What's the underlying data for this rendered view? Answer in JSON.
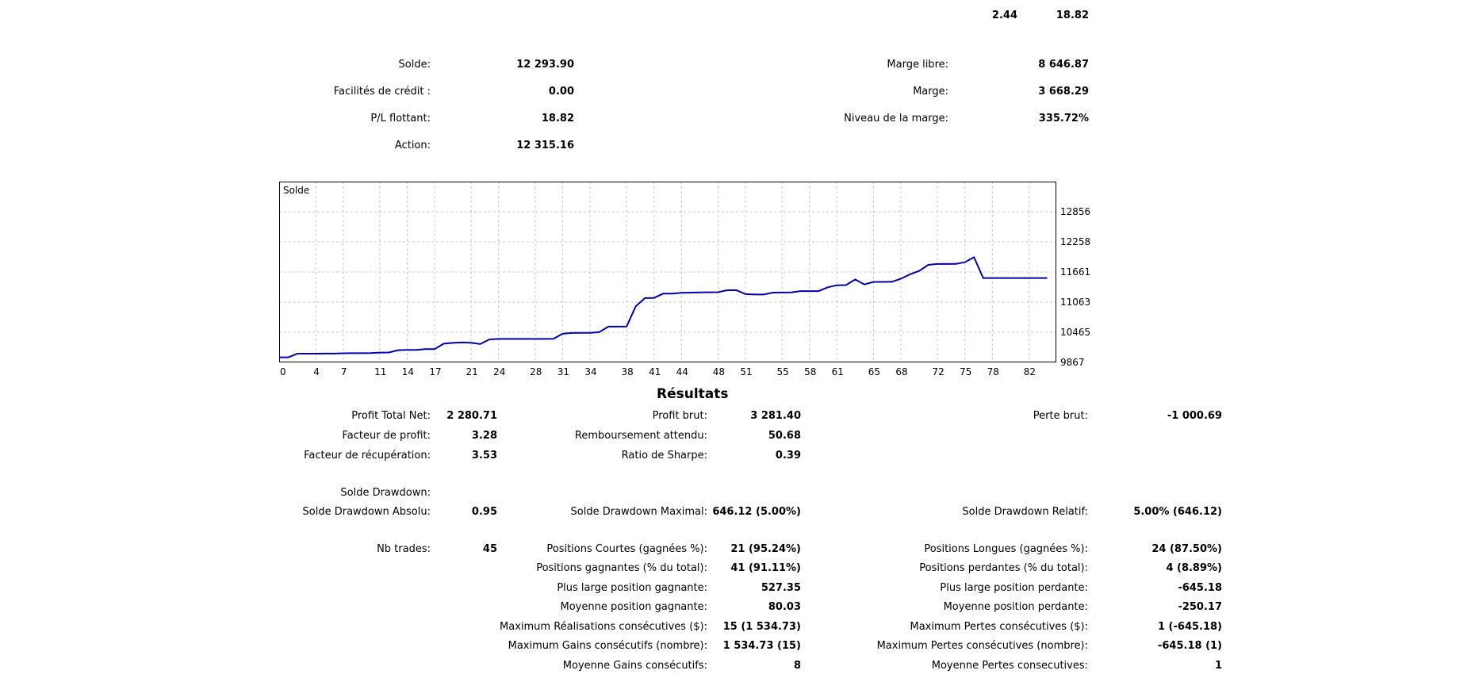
{
  "top_values": {
    "left": "2.44",
    "right": "18.82"
  },
  "account": {
    "solde_label": "Solde:",
    "solde": "12 293.90",
    "credit_label": "Facilités de crédit :",
    "credit": "0.00",
    "pl_label": "P/L flottant:",
    "pl": "18.82",
    "action_label": "Action:",
    "action": "12 315.16",
    "marge_libre_label": "Marge libre:",
    "marge_libre": "8 646.87",
    "marge_label": "Marge:",
    "marge": "3 668.29",
    "niveau_label": "Niveau de la marge:",
    "niveau": "335.72%"
  },
  "chart_data": {
    "type": "line",
    "title": "Solde",
    "x_ticks": [
      "0",
      "4",
      "7",
      "11",
      "14",
      "17",
      "21",
      "24",
      "28",
      "31",
      "34",
      "38",
      "41",
      "44",
      "48",
      "51",
      "55",
      "58",
      "61",
      "65",
      "68",
      "72",
      "75",
      "78",
      "82"
    ],
    "y_ticks": [
      "12856",
      "12258",
      "11661",
      "11063",
      "10465",
      "9867"
    ],
    "xlim": [
      0,
      85
    ],
    "ylim": [
      9867,
      13454
    ],
    "grid": true,
    "color": "#0000aa",
    "series": [
      {
        "x": [
          0,
          1,
          2,
          3,
          4,
          5,
          6,
          7,
          8,
          9,
          10,
          11,
          12,
          13,
          14,
          15,
          16,
          17,
          18,
          19,
          20,
          21,
          22,
          23,
          24,
          25,
          26,
          27,
          28,
          29,
          30,
          31,
          32,
          33,
          34,
          35,
          36,
          37,
          38,
          39,
          40,
          41,
          42,
          43,
          44,
          45,
          46,
          47,
          48,
          49,
          50,
          51,
          52,
          53,
          54,
          55,
          56,
          57,
          58,
          59,
          60,
          61,
          62,
          63,
          64,
          65,
          66,
          67,
          68,
          69,
          70,
          71,
          72,
          73,
          74,
          75,
          76,
          77,
          78,
          79,
          80,
          81,
          82,
          83,
          84
        ],
        "y": [
          9968,
          9968,
          10040,
          10040,
          10040,
          10041,
          10042,
          10048,
          10050,
          10050,
          10052,
          10062,
          10064,
          10110,
          10115,
          10115,
          10130,
          10132,
          10238,
          10254,
          10262,
          10256,
          10231,
          10324,
          10332,
          10332,
          10333,
          10333,
          10333,
          10333,
          10334,
          10435,
          10450,
          10452,
          10453,
          10466,
          10576,
          10577,
          10578,
          10979,
          11143,
          11146,
          11231,
          11232,
          11249,
          11252,
          11255,
          11258,
          11260,
          11298,
          11300,
          11222,
          11213,
          11213,
          11252,
          11253,
          11254,
          11281,
          11282,
          11282,
          11357,
          11397,
          11401,
          11512,
          11413,
          11464,
          11464,
          11465,
          11527,
          11615,
          11682,
          11802,
          11820,
          11820,
          11821,
          11854,
          11953,
          11541,
          11541,
          11541,
          11541,
          11541,
          11541,
          11541,
          11541
        ]
      }
    ]
  },
  "results": {
    "title": "Résultats",
    "profit_total_label": "Profit Total Net:",
    "profit_total": "2 280.71",
    "profit_brut_label": "Profit brut:",
    "profit_brut": "3 281.40",
    "perte_brut_label": "Perte brut:",
    "perte_brut": "-1 000.69",
    "facteur_profit_label": "Facteur de profit:",
    "facteur_profit": "3.28",
    "remboursement_label": "Remboursement attendu:",
    "remboursement": "50.68",
    "facteur_recup_label": "Facteur de récupération:",
    "facteur_recup": "3.53",
    "sharpe_label": "Ratio de Sharpe:",
    "sharpe": "0.39",
    "solde_drawdown_label": "Solde Drawdown:",
    "dd_absolu_label": "Solde Drawdown Absolu:",
    "dd_absolu": "0.95",
    "dd_maximal_label": "Solde Drawdown Maximal:",
    "dd_maximal": "646.12 (5.00%)",
    "dd_relatif_label": "Solde Drawdown Relatif:",
    "dd_relatif": "5.00% (646.12)",
    "nb_trades_label": "Nb trades:",
    "nb_trades": "45",
    "pos_courtes_label": "Positions Courtes (gagnées %):",
    "pos_courtes": "21 (95.24%)",
    "pos_longues_label": "Positions Longues (gagnées %):",
    "pos_longues": "24 (87.50%)",
    "pos_gagnantes_label": "Positions gagnantes (% du total):",
    "pos_gagnantes": "41 (91.11%)",
    "pos_perdantes_label": "Positions perdantes (% du total):",
    "pos_perdantes": "4 (8.89%)",
    "large_gagnante_label": "Plus large position gagnante:",
    "large_gagnante": "527.35",
    "large_perdante_label": "Plus large position perdante:",
    "large_perdante": "-645.18",
    "moy_gagnante_label": "Moyenne position gagnante:",
    "moy_gagnante": "80.03",
    "moy_perdante_label": "Moyenne position perdante:",
    "moy_perdante": "-250.17",
    "max_real_label": "Maximum Réalisations consécutives ($):",
    "max_real": "15 (1 534.73)",
    "max_pertes_label": "Maximum Pertes consécutives ($):",
    "max_pertes": "1 (-645.18)",
    "max_gains_nb_label": "Maximum Gains consécutifs (nombre):",
    "max_gains_nb": "1 534.73 (15)",
    "max_pertes_nb_label": "Maximum Pertes consécutives (nombre):",
    "max_pertes_nb": "-645.18 (1)",
    "moy_gains_label": "Moyenne Gains consécutifs:",
    "moy_gains": "8",
    "moy_pertes_label": "Moyenne Pertes consecutives:",
    "moy_pertes": "1"
  }
}
